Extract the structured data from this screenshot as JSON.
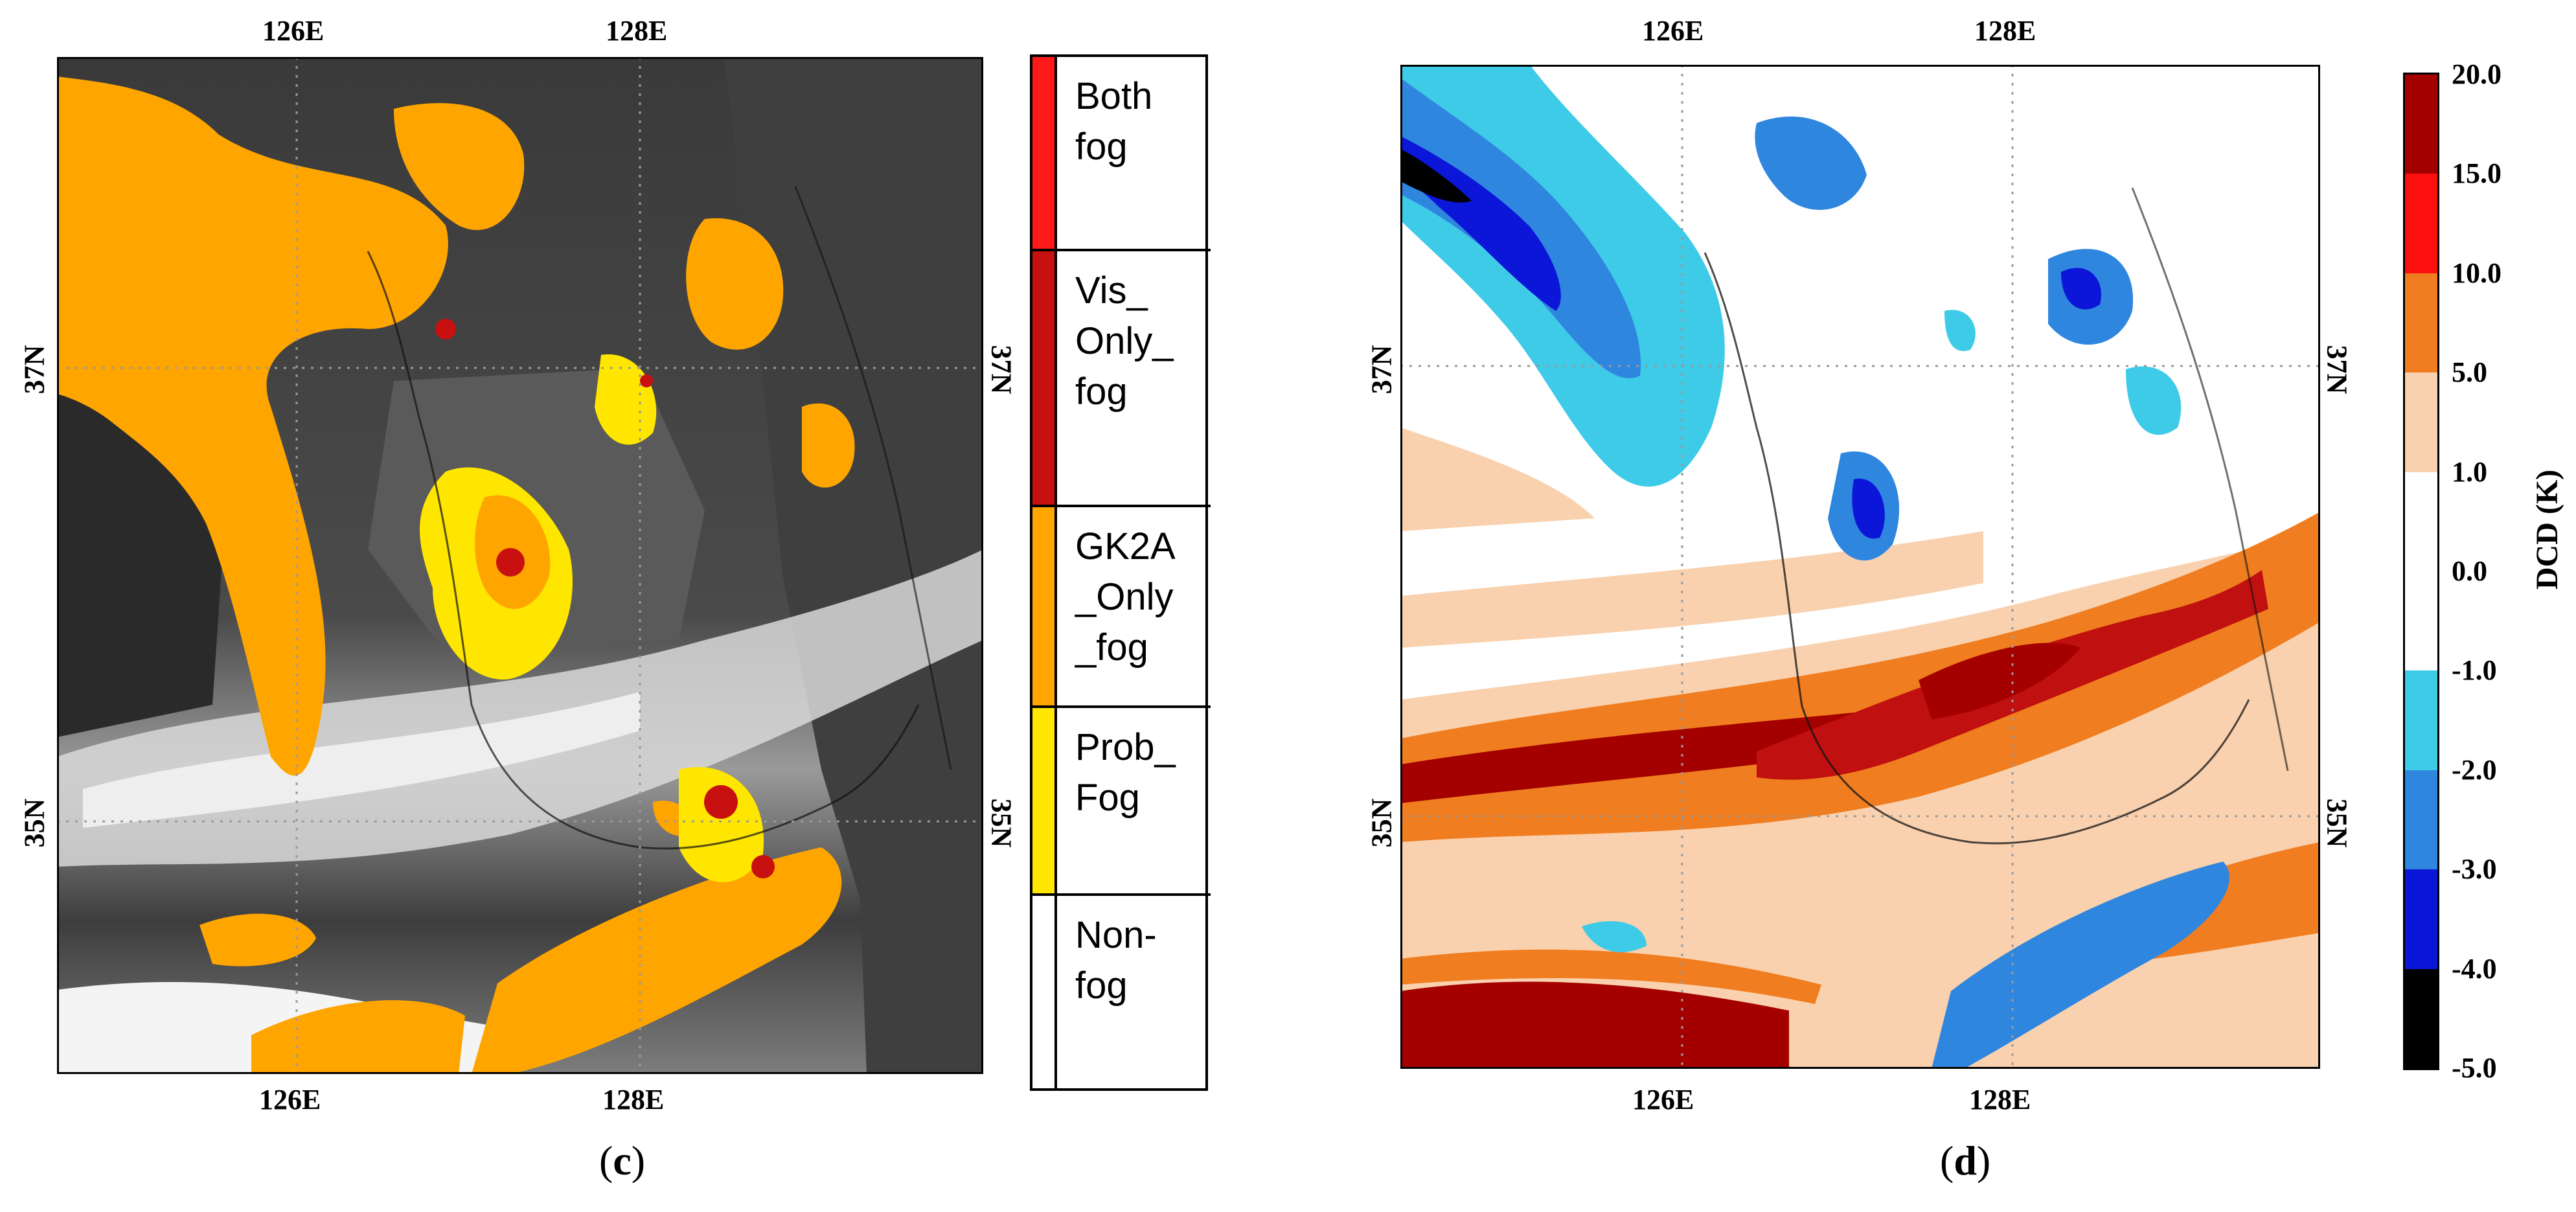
{
  "panel_c": {
    "label": "c",
    "ticks": {
      "top_lon": [
        "126E",
        "128E"
      ],
      "bottom_lon": [
        "126E",
        "128E"
      ],
      "left_lat": [
        "37N",
        "35N"
      ],
      "right_lat": [
        "37N",
        "35N"
      ]
    },
    "legend": [
      {
        "label": "Both fog",
        "color": "#ff1a1a"
      },
      {
        "label": "Vis_ Only_ fog",
        "color": "#c81010"
      },
      {
        "label": "GK2A _Only _fog",
        "color": "#ffa500"
      },
      {
        "label": "Prob_ Fog",
        "color": "#ffe600"
      },
      {
        "label": "Non- fog",
        "color": "#ffffff"
      }
    ]
  },
  "panel_d": {
    "label": "d",
    "ticks": {
      "top_lon": [
        "126E",
        "128E"
      ],
      "bottom_lon": [
        "126E",
        "128E"
      ],
      "left_lat": [
        "37N",
        "35N"
      ],
      "right_lat": [
        "37N",
        "35N"
      ]
    },
    "colorbar": {
      "title": "DCD (K)",
      "labels": [
        "20.0",
        "15.0",
        "10.0",
        "5.0",
        "1.0",
        "0.0",
        "-1.0",
        "-2.0",
        "-3.0",
        "-4.0",
        "-5.0"
      ],
      "colors": [
        "#a50000",
        "#ff1010",
        "#f07d20",
        "#f9d1ae",
        "#ffffff",
        "#ffffff",
        "#3ecbe8",
        "#2f86de",
        "#0b16d8",
        "#000000"
      ]
    }
  }
}
